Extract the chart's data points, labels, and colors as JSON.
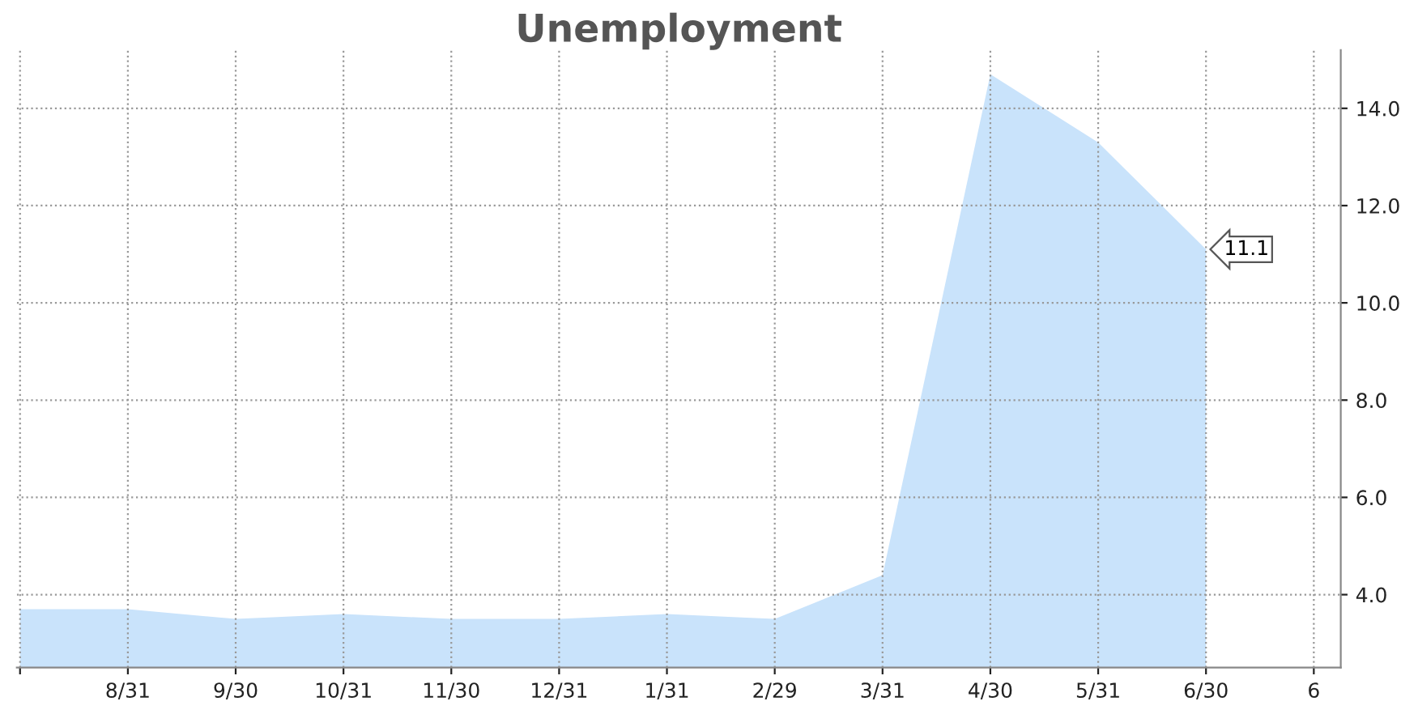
{
  "chart_data": {
    "type": "area",
    "title": "Unemployment",
    "categories": [
      null,
      "8/31",
      "9/30",
      "10/31",
      "11/30",
      "12/31",
      "1/31",
      "2/29",
      "3/31",
      "4/30",
      "5/31",
      "6/30",
      "6"
    ],
    "series": [
      {
        "color": "#c9e3fb",
        "values": [
          3.7,
          3.7,
          3.5,
          3.6,
          3.5,
          3.5,
          3.6,
          3.5,
          4.4,
          14.7,
          13.3,
          11.1,
          null
        ],
        "value_labels": [
          null,
          null,
          null,
          null,
          null,
          null,
          null,
          null,
          null,
          null,
          null,
          "11.1",
          null
        ]
      }
    ],
    "ylim": [
      2.5,
      15.2
    ],
    "yticks": [
      {
        "value": 4,
        "label": "4.0"
      },
      {
        "value": 6,
        "label": "6.0"
      },
      {
        "value": 8,
        "label": "8.0"
      },
      {
        "value": 10,
        "label": "10.0"
      },
      {
        "value": 12,
        "label": "12.0"
      },
      {
        "value": 14,
        "label": "14.0"
      }
    ],
    "grid": true
  }
}
